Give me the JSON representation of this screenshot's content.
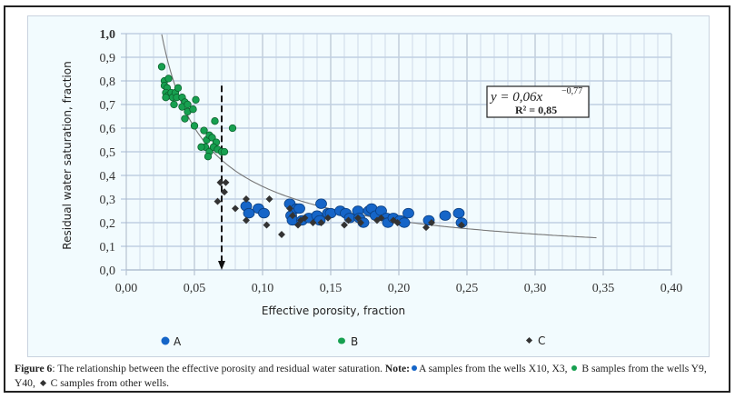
{
  "chart_data": {
    "type": "scatter",
    "title": "",
    "xlabel": "Effective porosity, fraction",
    "ylabel": "Residual water saturation, fraction",
    "xlim": [
      0.0,
      0.4
    ],
    "ylim": [
      0.0,
      1.0
    ],
    "x_ticks": [
      "0,00",
      "0,05",
      "0,10",
      "0,15",
      "0,20",
      "0,25",
      "0,30",
      "0,35",
      "0,40"
    ],
    "x_tick_values": [
      0,
      0.05,
      0.1,
      0.15,
      0.2,
      0.25,
      0.3,
      0.35,
      0.4
    ],
    "y_ticks": [
      "0,0",
      "0,1",
      "0,2",
      "0,3",
      "0,4",
      "0,5",
      "0,6",
      "0,7",
      "0,8",
      "0,9",
      "1,0"
    ],
    "y_tick_values": [
      0,
      0.1,
      0.2,
      0.3,
      0.4,
      0.5,
      0.6,
      0.7,
      0.8,
      0.9,
      1.0
    ],
    "grid": true,
    "legend_position": "bottom",
    "series": [
      {
        "name": "A",
        "marker": "circle",
        "color": "#1565c8",
        "points": [
          [
            0.088,
            0.27
          ],
          [
            0.09,
            0.24
          ],
          [
            0.097,
            0.26
          ],
          [
            0.101,
            0.24
          ],
          [
            0.12,
            0.28
          ],
          [
            0.121,
            0.23
          ],
          [
            0.122,
            0.21
          ],
          [
            0.125,
            0.26
          ],
          [
            0.127,
            0.26
          ],
          [
            0.129,
            0.21
          ],
          [
            0.134,
            0.22
          ],
          [
            0.14,
            0.23
          ],
          [
            0.143,
            0.28
          ],
          [
            0.142,
            0.21
          ],
          [
            0.148,
            0.24
          ],
          [
            0.15,
            0.24
          ],
          [
            0.157,
            0.25
          ],
          [
            0.161,
            0.24
          ],
          [
            0.164,
            0.22
          ],
          [
            0.17,
            0.25
          ],
          [
            0.171,
            0.22
          ],
          [
            0.174,
            0.2
          ],
          [
            0.178,
            0.25
          ],
          [
            0.18,
            0.26
          ],
          [
            0.183,
            0.23
          ],
          [
            0.187,
            0.25
          ],
          [
            0.191,
            0.22
          ],
          [
            0.192,
            0.2
          ],
          [
            0.196,
            0.22
          ],
          [
            0.201,
            0.21
          ],
          [
            0.204,
            0.2
          ],
          [
            0.207,
            0.24
          ],
          [
            0.222,
            0.21
          ],
          [
            0.234,
            0.23
          ],
          [
            0.244,
            0.24
          ],
          [
            0.246,
            0.2
          ]
        ]
      },
      {
        "name": "B",
        "marker": "circle",
        "color": "#17a050",
        "points": [
          [
            0.026,
            0.86
          ],
          [
            0.028,
            0.8
          ],
          [
            0.031,
            0.81
          ],
          [
            0.028,
            0.78
          ],
          [
            0.03,
            0.77
          ],
          [
            0.029,
            0.75
          ],
          [
            0.031,
            0.74
          ],
          [
            0.029,
            0.73
          ],
          [
            0.033,
            0.75
          ],
          [
            0.034,
            0.73
          ],
          [
            0.036,
            0.75
          ],
          [
            0.038,
            0.77
          ],
          [
            0.037,
            0.73
          ],
          [
            0.035,
            0.7
          ],
          [
            0.041,
            0.73
          ],
          [
            0.043,
            0.71
          ],
          [
            0.041,
            0.69
          ],
          [
            0.045,
            0.7
          ],
          [
            0.045,
            0.67
          ],
          [
            0.043,
            0.64
          ],
          [
            0.049,
            0.68
          ],
          [
            0.051,
            0.72
          ],
          [
            0.05,
            0.61
          ],
          [
            0.057,
            0.59
          ],
          [
            0.059,
            0.55
          ],
          [
            0.061,
            0.57
          ],
          [
            0.063,
            0.56
          ],
          [
            0.066,
            0.54
          ],
          [
            0.065,
            0.63
          ],
          [
            0.078,
            0.6
          ],
          [
            0.058,
            0.52
          ],
          [
            0.061,
            0.5
          ],
          [
            0.064,
            0.52
          ],
          [
            0.067,
            0.51
          ],
          [
            0.07,
            0.5
          ],
          [
            0.072,
            0.5
          ],
          [
            0.06,
            0.48
          ],
          [
            0.055,
            0.52
          ]
        ]
      },
      {
        "name": "C",
        "marker": "diamond",
        "color": "#333333",
        "points": [
          [
            0.069,
            0.37
          ],
          [
            0.073,
            0.37
          ],
          [
            0.072,
            0.33
          ],
          [
            0.067,
            0.29
          ],
          [
            0.08,
            0.26
          ],
          [
            0.088,
            0.3
          ],
          [
            0.088,
            0.21
          ],
          [
            0.103,
            0.19
          ],
          [
            0.105,
            0.3
          ],
          [
            0.114,
            0.15
          ],
          [
            0.12,
            0.26
          ],
          [
            0.122,
            0.23
          ],
          [
            0.126,
            0.19
          ],
          [
            0.128,
            0.21
          ],
          [
            0.131,
            0.22
          ],
          [
            0.137,
            0.2
          ],
          [
            0.143,
            0.2
          ],
          [
            0.148,
            0.22
          ],
          [
            0.16,
            0.19
          ],
          [
            0.163,
            0.21
          ],
          [
            0.17,
            0.22
          ],
          [
            0.172,
            0.2
          ],
          [
            0.184,
            0.21
          ],
          [
            0.187,
            0.22
          ],
          [
            0.196,
            0.21
          ],
          [
            0.199,
            0.2
          ],
          [
            0.22,
            0.18
          ],
          [
            0.224,
            0.2
          ],
          [
            0.246,
            0.19
          ]
        ]
      }
    ],
    "trendline": {
      "type": "power",
      "coefficient": 0.06,
      "exponent": -0.77,
      "x_range": [
        0.026,
        0.345
      ],
      "color": "#777777"
    },
    "annotations": {
      "equation_prefix": "y = 0,06x",
      "equation_exponent": "−0,77",
      "r_squared": "R² = 0,85",
      "cutoff_x": 0.07,
      "cutoff_y_top": 0.78
    },
    "legend": [
      {
        "label": "A",
        "marker": "circle",
        "color": "#1565c8"
      },
      {
        "label": "B",
        "marker": "circle",
        "color": "#17a050"
      },
      {
        "label": "C",
        "marker": "diamond",
        "color": "#333333"
      }
    ]
  },
  "caption": {
    "figure_label": "Figure 6",
    "text": ": The relationship between the effective porosity and residual water saturation. ",
    "note_label": "Note:",
    "note_a": "A samples from the wells X10, X3, ",
    "note_b": " B samples from the wells Y9, Y40, ",
    "note_c": " C samples from other wells."
  }
}
